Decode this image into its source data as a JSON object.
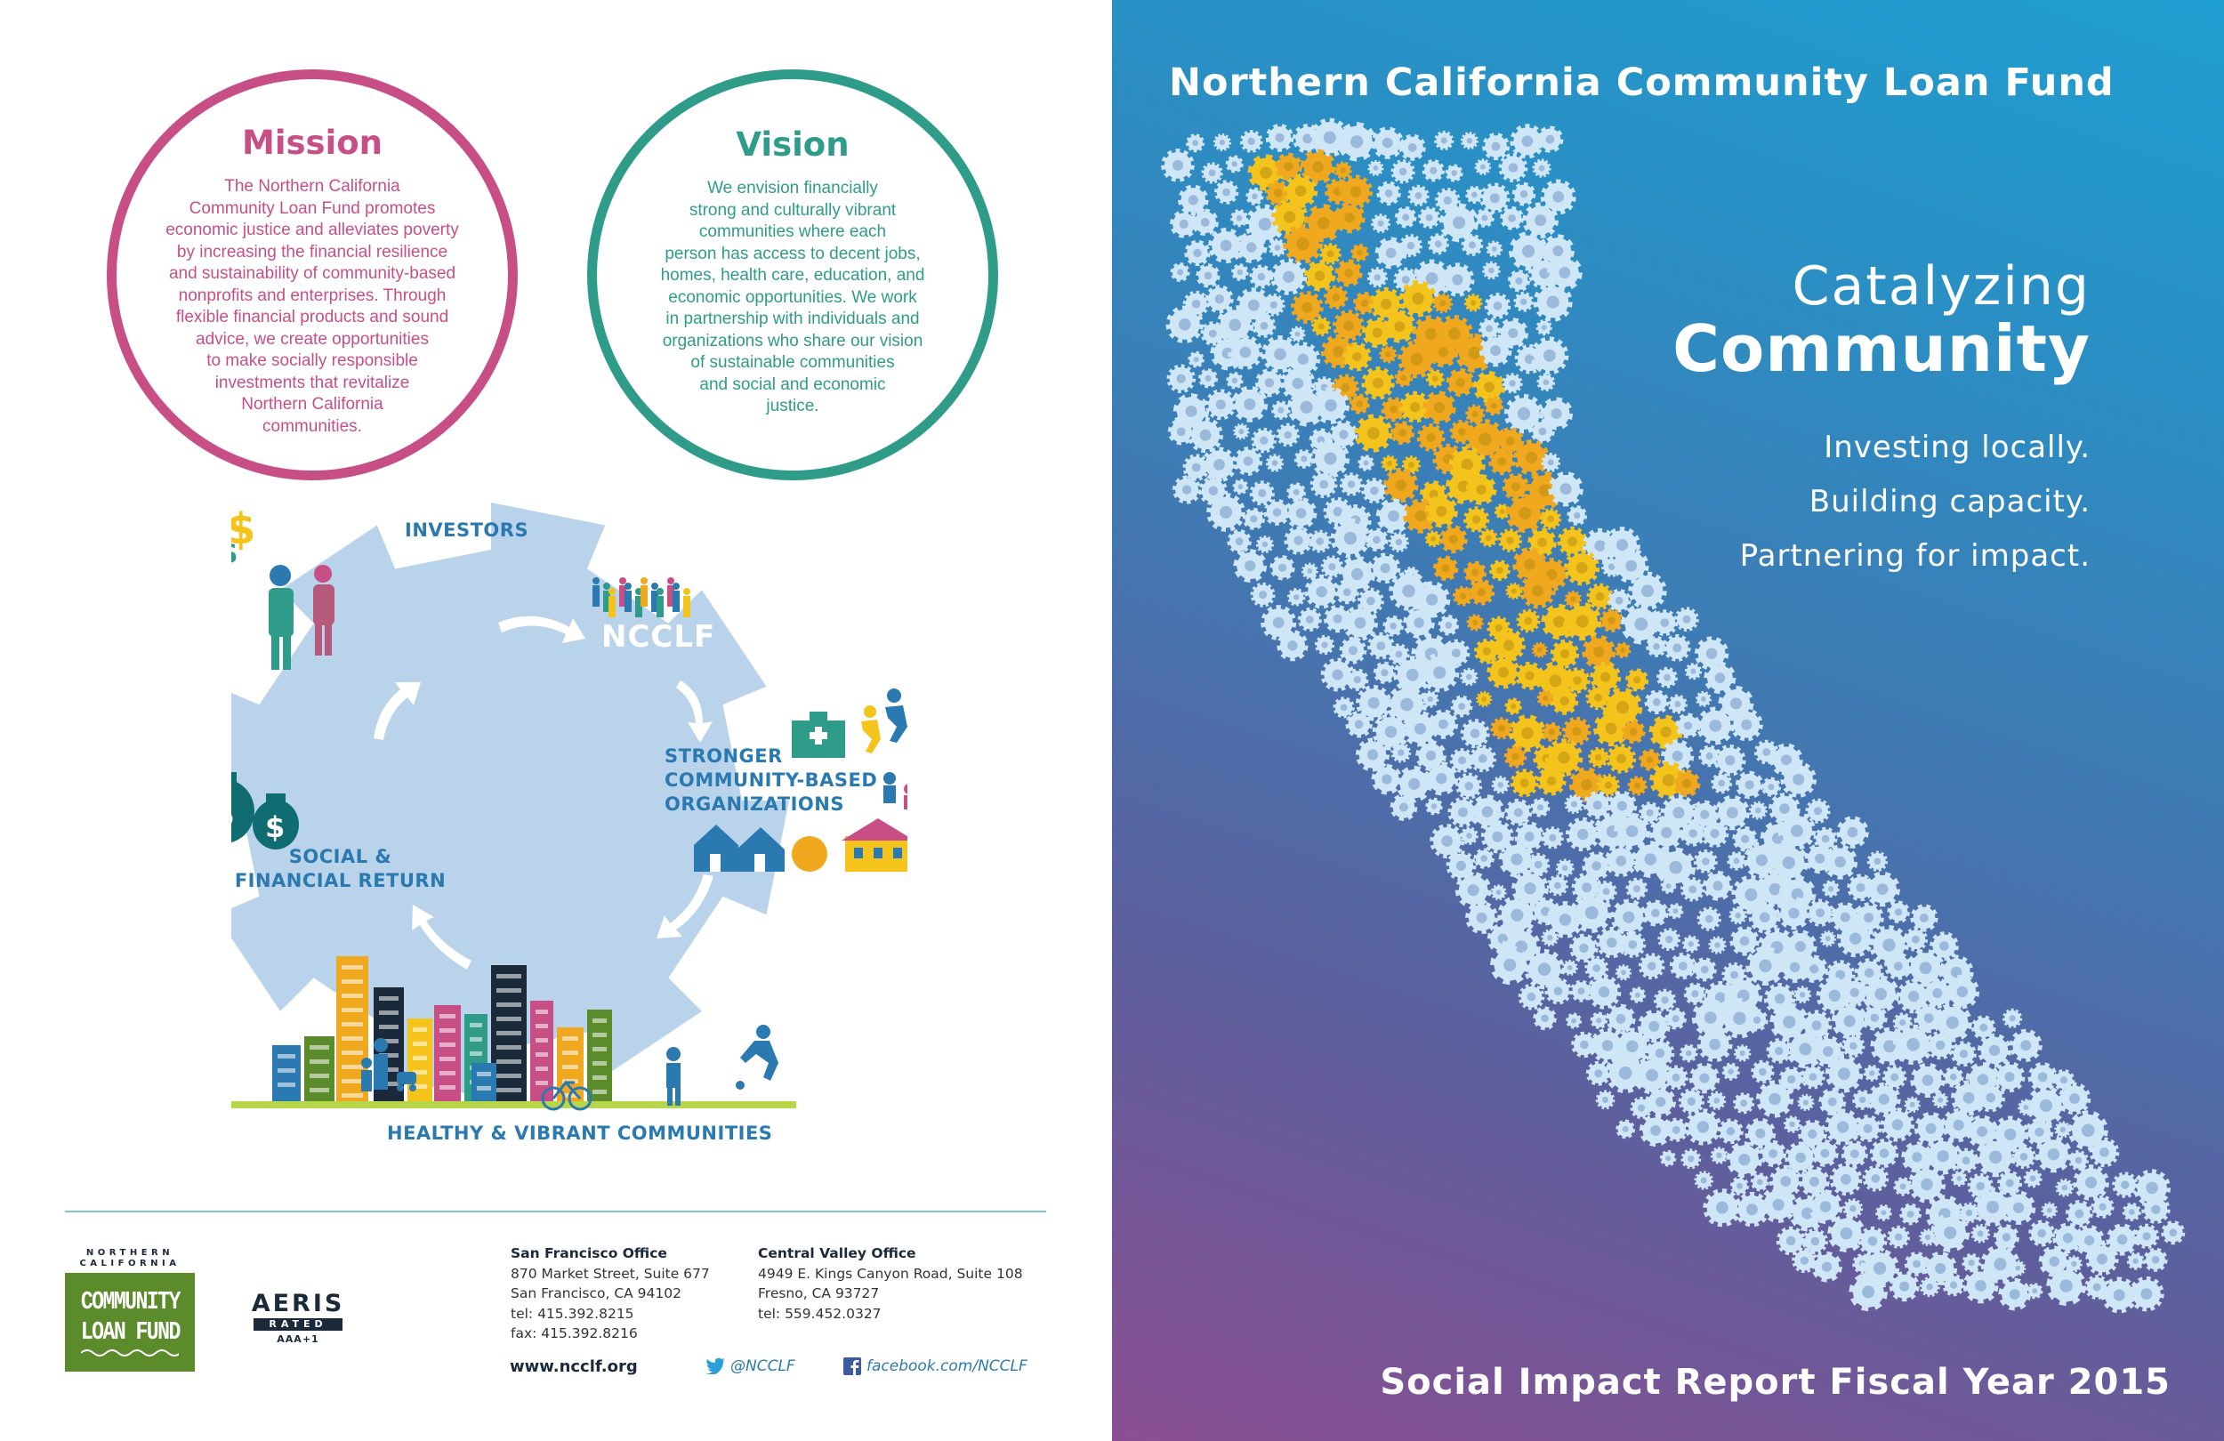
{
  "mission": {
    "title": "Mission",
    "lines": [
      "The Northern California",
      "Community Loan Fund promotes",
      "economic justice and alleviates poverty",
      "by increasing the financial resilience",
      "and sustainability of community-based",
      "nonprofits and enterprises. Through",
      "flexible financial products and sound",
      "advice, we create opportunities",
      "to make socially responsible",
      "investments that revitalize",
      "Northern California",
      "communities."
    ]
  },
  "vision": {
    "title": "Vision",
    "lines": [
      "We envision financially",
      "strong and culturally vibrant",
      "communities where each",
      "person has access to decent jobs,",
      "homes, health care, education, and",
      "economic opportunities. We work",
      "in partnership with individuals and",
      "organizations who share our vision",
      "of sustainable communities",
      "and social and economic",
      "justice."
    ]
  },
  "diagram": {
    "investors": "INVESTORS",
    "ncclf": "NCCLF",
    "stronger": [
      "STRONGER",
      "COMMUNITY-BASED",
      "ORGANIZATIONS"
    ],
    "return": [
      "SOCIAL &",
      "FINANCIAL RETURN"
    ],
    "healthy": "HEALTHY & VIBRANT COMMUNITIES",
    "colors": {
      "gear": "#b9d3ea",
      "arrow": "#ffffff",
      "accent": "#2a79b0"
    },
    "icons": [
      "dollar-signs-icon",
      "investor-people-icon",
      "crowd-icon",
      "clinic-icon",
      "children-icon",
      "houses-icon",
      "money-bags-icon",
      "city-skyline-icon",
      "bicycle-icon"
    ]
  },
  "footer": {
    "logo": {
      "top": "NORTHERN",
      "top2": "CALIFORNIA",
      "line1": "COMMUNITY",
      "line2": "LOAN FUND"
    },
    "aeris": {
      "title": "AERIS",
      "rated": "RATED",
      "grade": "AAA+1"
    },
    "sf_office": {
      "title": "San Francisco Office",
      "lines": [
        "870 Market Street, Suite 677",
        "San Francisco, CA 94102",
        "tel: 415.392.8215",
        "fax: 415.392.8216"
      ]
    },
    "cv_office": {
      "title": "Central Valley Office",
      "lines": [
        "4949 E. Kings Canyon Road, Suite 108",
        "Fresno, CA 93727",
        "tel: 559.452.0327"
      ]
    },
    "website": "www.ncclf.org",
    "twitter": "@NCCLF",
    "facebook": "facebook.com/NCCLF"
  },
  "cover": {
    "org_name": "Northern California Community Loan Fund",
    "title_line1": "Catalyzing",
    "title_line2": "Community",
    "taglines": [
      "Investing locally.",
      "Building capacity.",
      "Partnering for impact."
    ],
    "report_title": "Social Impact Report Fiscal Year 2015",
    "colors": {
      "gear_light": "#cfe6f6",
      "gear_yellow": "#f4c41c",
      "gear_orange": "#f0a81e"
    }
  }
}
